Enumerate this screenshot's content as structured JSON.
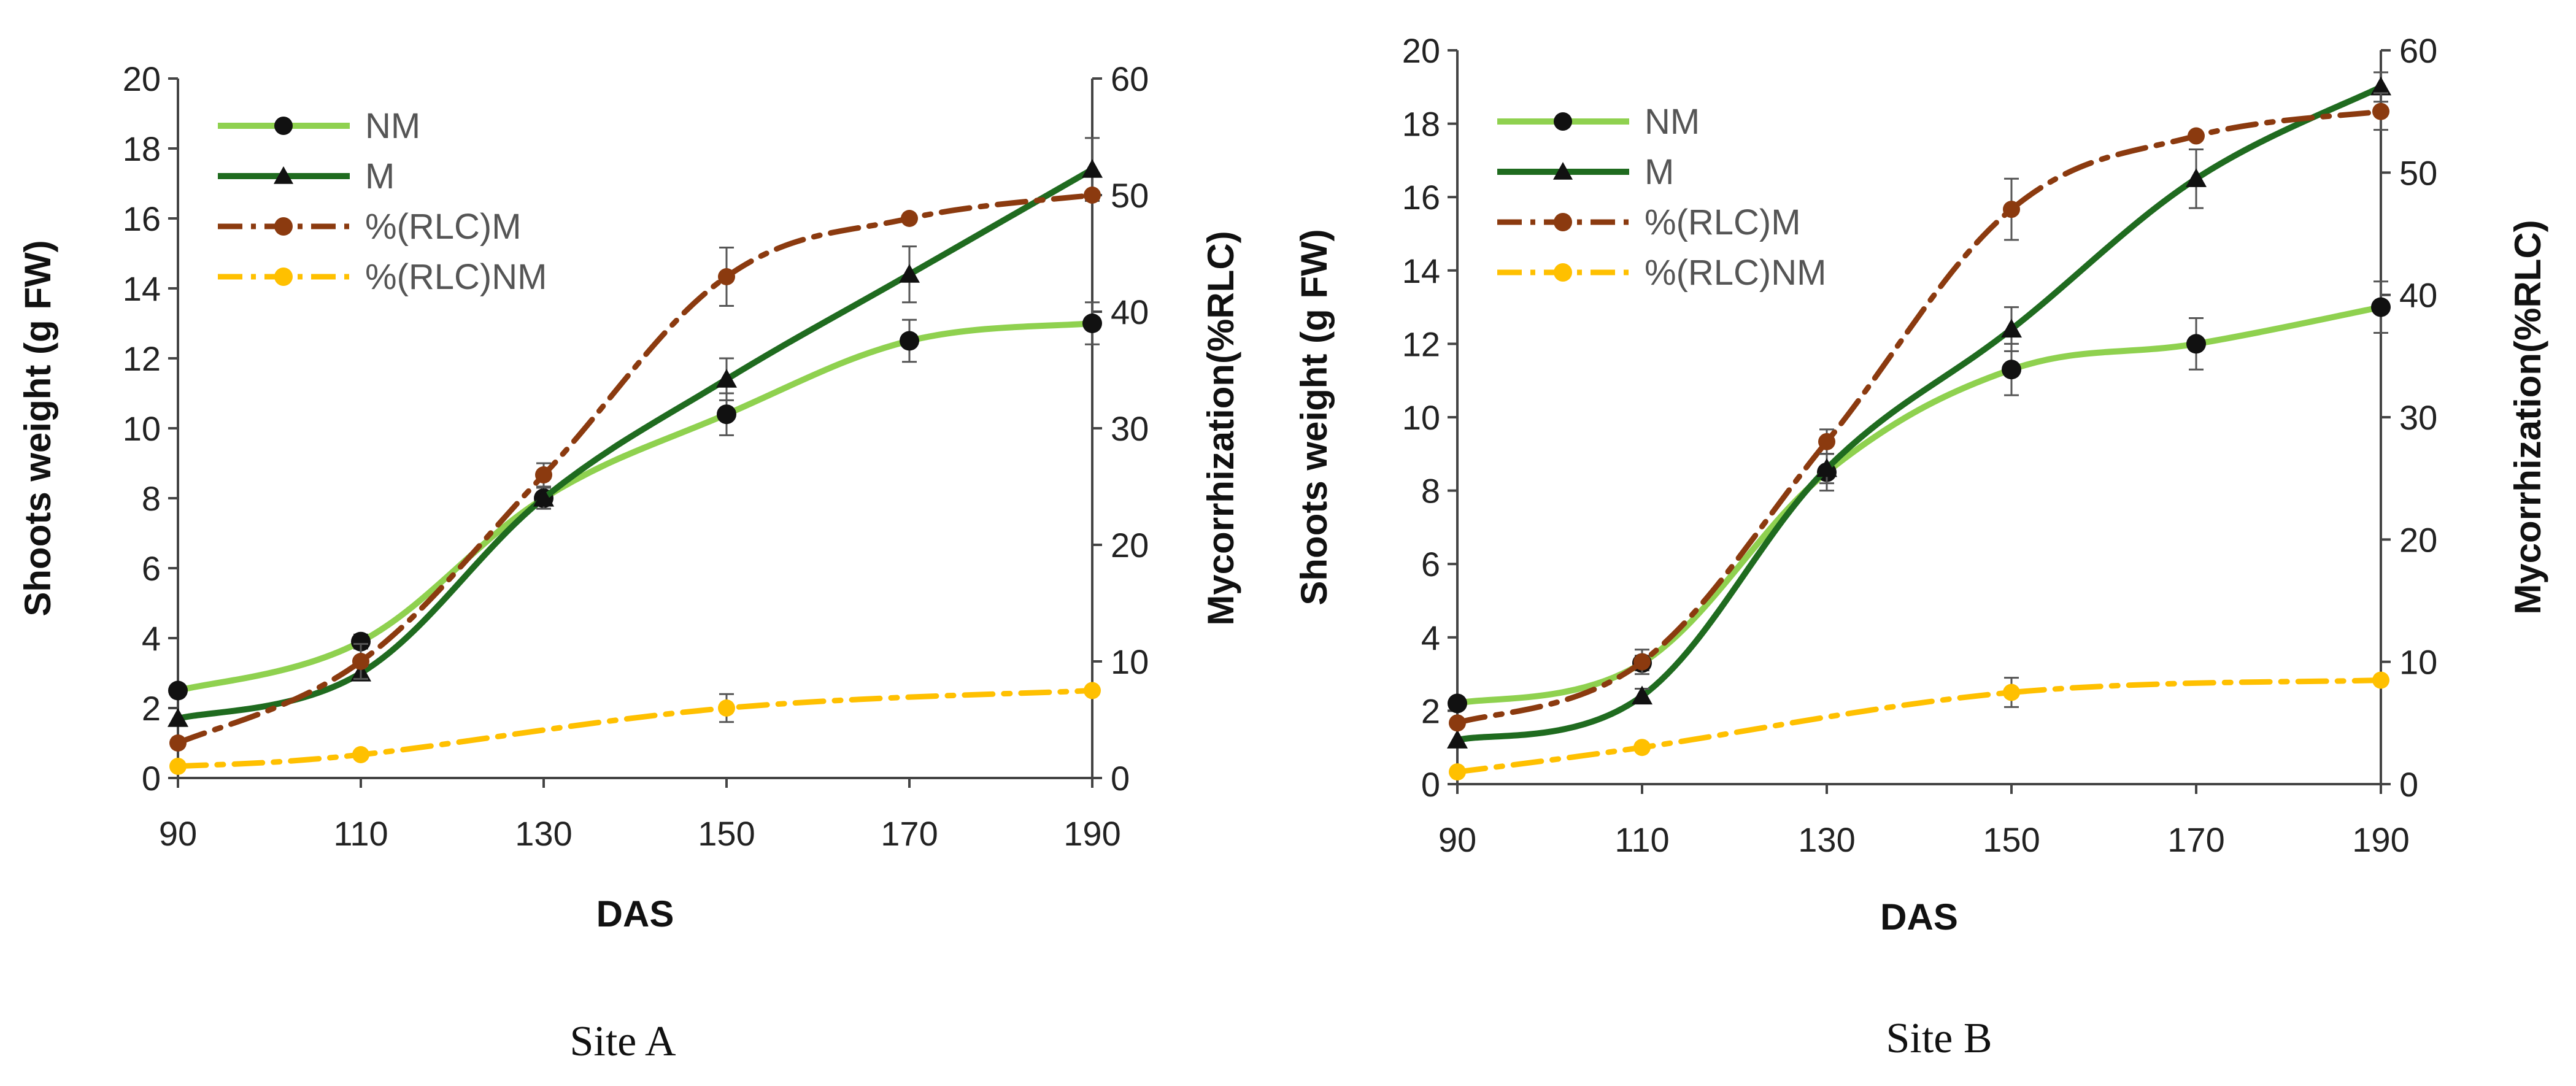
{
  "colors": {
    "NM": "#8fd14f",
    "M": "#1f6b1f",
    "RLC_M": "#8b3a0f",
    "RLC_NM": "#ffc000",
    "marker": "#111111",
    "axis": "#444444"
  },
  "chart_data": [
    {
      "type": "line",
      "caption": "Site A",
      "xlabel": "DAS",
      "ylabel": "Shoots weight (g FW)",
      "y2label": "Mycorrhization(%RLC)",
      "x": [
        90,
        110,
        130,
        150,
        170,
        190
      ],
      "xticks": [
        "90",
        "110",
        "130",
        "150",
        "170",
        "190"
      ],
      "xlim": [
        90,
        190
      ],
      "ylim": [
        0,
        20
      ],
      "y2lim": [
        0,
        60
      ],
      "yticks": [
        "0",
        "2",
        "4",
        "6",
        "8",
        "10",
        "12",
        "14",
        "16",
        "18",
        "20"
      ],
      "y2ticks": [
        "0",
        "10",
        "20",
        "30",
        "40",
        "50",
        "60"
      ],
      "legend_position": "top-left",
      "series": [
        {
          "name": "NM",
          "axis": "left",
          "style": "solid",
          "marker": "circle",
          "values": [
            2.5,
            3.9,
            8.0,
            10.4,
            12.5,
            13.0
          ],
          "errors": [
            0,
            0.2,
            0.3,
            0.6,
            0.6,
            0.6
          ]
        },
        {
          "name": "M",
          "axis": "left",
          "style": "solid",
          "marker": "triangle",
          "values": [
            1.7,
            3.0,
            8.0,
            11.4,
            14.4,
            17.4
          ],
          "errors": [
            0,
            0.2,
            0.3,
            0.6,
            0.8,
            0.9
          ]
        },
        {
          "name": "%(RLC)M",
          "axis": "right",
          "style": "dashdot",
          "marker": "circle",
          "values": [
            3.0,
            10.0,
            26.0,
            43.0,
            48.0,
            50.0
          ],
          "errors": [
            0,
            1.5,
            1.0,
            2.5,
            0,
            0
          ]
        },
        {
          "name": "%(RLC)NM",
          "axis": "right",
          "style": "dashdot",
          "marker": "circle",
          "values": [
            1.0,
            2.0,
            null,
            6.0,
            null,
            7.5
          ],
          "errors": [
            0,
            0,
            0,
            1.2,
            0,
            0
          ]
        }
      ]
    },
    {
      "type": "line",
      "caption": "Site B",
      "xlabel": "DAS",
      "ylabel": "Shoots weight (g FW)",
      "y2label": "Mycorrhization(%RLC)",
      "x": [
        90,
        110,
        130,
        150,
        170,
        190
      ],
      "xticks": [
        "90",
        "110",
        "130",
        "150",
        "170",
        "190"
      ],
      "xlim": [
        90,
        190
      ],
      "ylim": [
        0,
        20
      ],
      "y2lim": [
        0,
        60
      ],
      "yticks": [
        "0",
        "2",
        "4",
        "6",
        "8",
        "10",
        "12",
        "14",
        "16",
        "18",
        "20"
      ],
      "y2ticks": [
        "0",
        "10",
        "20",
        "30",
        "40",
        "50",
        "60"
      ],
      "legend_position": "top-left",
      "series": [
        {
          "name": "NM",
          "axis": "left",
          "style": "solid",
          "marker": "circle",
          "values": [
            2.2,
            3.3,
            8.5,
            11.3,
            12.0,
            13.0
          ],
          "errors": [
            0,
            0.2,
            0.5,
            0.7,
            0.7,
            0.7
          ]
        },
        {
          "name": "M",
          "axis": "left",
          "style": "solid",
          "marker": "triangle",
          "values": [
            1.2,
            2.4,
            8.6,
            12.4,
            16.5,
            19.0
          ],
          "errors": [
            0,
            0.2,
            0.4,
            0.6,
            0.8,
            0.4
          ]
        },
        {
          "name": "%(RLC)M",
          "axis": "right",
          "style": "dashdot",
          "marker": "circle",
          "values": [
            5.0,
            10.0,
            28.0,
            47.0,
            53.0,
            55.0
          ],
          "errors": [
            0,
            1.0,
            1.0,
            2.5,
            0,
            1.5
          ]
        },
        {
          "name": "%(RLC)NM",
          "axis": "right",
          "style": "dashdot",
          "marker": "circle",
          "values": [
            1.0,
            3.0,
            null,
            7.5,
            null,
            8.5
          ],
          "errors": [
            0,
            0,
            0,
            1.2,
            0,
            0
          ]
        }
      ]
    }
  ]
}
